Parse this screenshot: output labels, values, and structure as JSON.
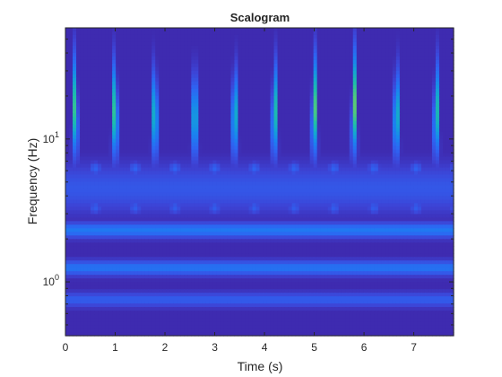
{
  "chart_data": {
    "type": "heatmap",
    "title": "Scalogram",
    "xlabel": "Time (s)",
    "ylabel": "Frequency (Hz)",
    "xlim": [
      0,
      7.8
    ],
    "ylim": [
      0.42,
      60
    ],
    "yscale": "log",
    "x_ticks": [
      {
        "value": 0,
        "label": "0"
      },
      {
        "value": 1,
        "label": "1"
      },
      {
        "value": 2,
        "label": "2"
      },
      {
        "value": 3,
        "label": "3"
      },
      {
        "value": 4,
        "label": "4"
      },
      {
        "value": 5,
        "label": "5"
      },
      {
        "value": 6,
        "label": "6"
      },
      {
        "value": 7,
        "label": "7"
      }
    ],
    "y_ticks": [
      {
        "value": 1,
        "base": "10",
        "exponent": "0"
      },
      {
        "value": 10,
        "base": "10",
        "exponent": "1"
      }
    ],
    "colormap": [
      "#3e26a8",
      "#3d43d5",
      "#2e63f2",
      "#1a83f0",
      "#13a6d3",
      "#1ebfa8",
      "#5ccc72",
      "#b8c63a",
      "#f5c326",
      "#f9fb15"
    ],
    "grid": false,
    "legend": "none",
    "burst_times": [
      0.2,
      1.0,
      1.8,
      2.6,
      3.4,
      4.2,
      5.0,
      5.8,
      6.65,
      7.45
    ],
    "burst_peak_frequency": 18,
    "burst_relative_magnitude": [
      0.75,
      0.85,
      0.8,
      0.8,
      0.78,
      0.78,
      0.8,
      0.75,
      0.8,
      0.76
    ],
    "low_frequency_bands": [
      {
        "frequency": 2.3,
        "relative_magnitude": 0.3
      },
      {
        "frequency": 1.25,
        "relative_magnitude": 0.28
      },
      {
        "frequency": 0.75,
        "relative_magnitude": 0.2
      }
    ]
  }
}
